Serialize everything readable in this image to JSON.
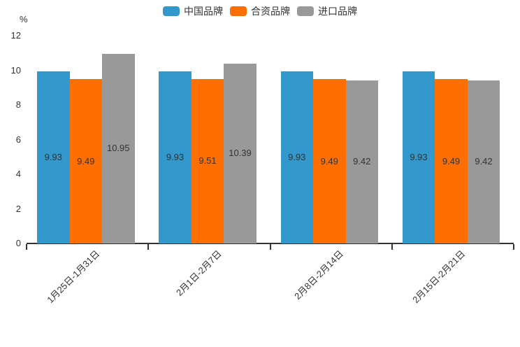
{
  "chart_data": {
    "type": "bar",
    "title": "",
    "ylabel": "%",
    "xlabel": "",
    "ylim": [
      0,
      12
    ],
    "yticks": [
      0,
      2,
      4,
      6,
      8,
      10,
      12
    ],
    "grid": false,
    "legend_position": "top",
    "value_labels": "inside-middle",
    "background_color": "#ffffff",
    "axis_color": "#333333",
    "text_color": "#333333",
    "categories": [
      "1月25日-1月31日",
      "2月1日-2月7日",
      "2月8日-2月14日",
      "2月15日-2月21日"
    ],
    "series": [
      {
        "name": "中国品牌",
        "color": "#3398cc",
        "values": [
          9.93,
          9.93,
          9.93,
          9.93
        ]
      },
      {
        "name": "合资品牌",
        "color": "#ff6e00",
        "values": [
          9.49,
          9.51,
          9.49,
          9.49
        ]
      },
      {
        "name": "进口品牌",
        "color": "#999999",
        "values": [
          10.95,
          10.39,
          9.42,
          9.42
        ]
      }
    ]
  }
}
